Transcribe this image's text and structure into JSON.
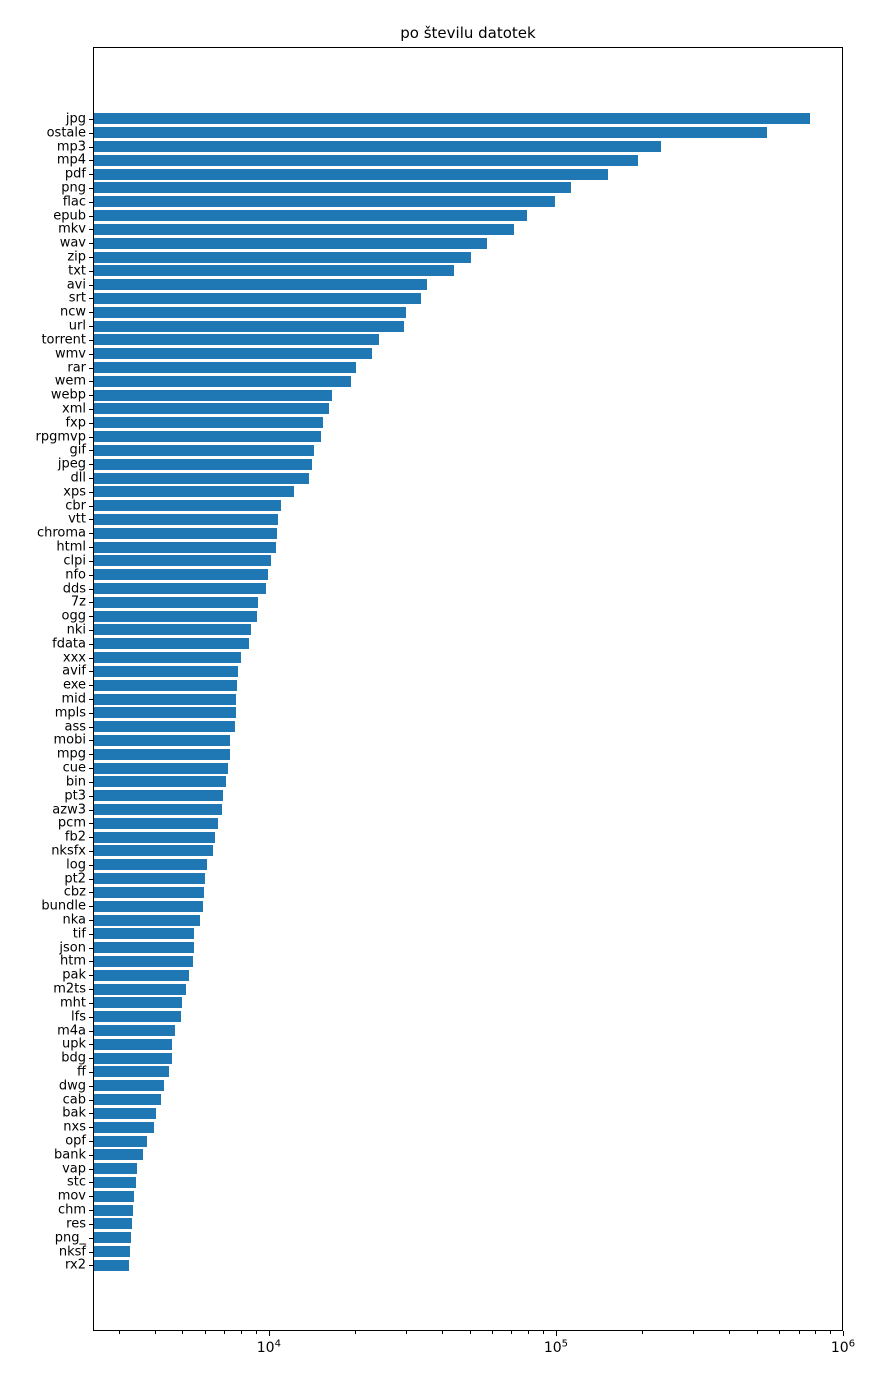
{
  "title": "po številu datotek",
  "chart_data": {
    "type": "bar",
    "orientation": "horizontal",
    "title": "po številu datotek",
    "xlabel": "",
    "ylabel": "",
    "xscale": "log",
    "xlim": [
      2440,
      1000000
    ],
    "grid": false,
    "legend": false,
    "bar_color": "#1f77b4",
    "x_major_ticks": [
      {
        "value": 10000,
        "base": "10",
        "exponent": "4"
      },
      {
        "value": 100000,
        "base": "10",
        "exponent": "5"
      },
      {
        "value": 1000000,
        "base": "10",
        "exponent": "6"
      }
    ],
    "categories": [
      "jpg",
      "ostale",
      "mp3",
      "mp4",
      "pdf",
      "png",
      "flac",
      "epub",
      "mkv",
      "wav",
      "zip",
      "txt",
      "avi",
      "srt",
      "ncw",
      "url",
      "torrent",
      "wmv",
      "rar",
      "wem",
      "webp",
      "xml",
      "fxp",
      "rpgmvp",
      "gif",
      "jpeg",
      "dll",
      "xps",
      "cbr",
      "vtt",
      "chroma",
      "html",
      "clpi",
      "nfo",
      "dds",
      "7z",
      "ogg",
      "nki",
      "fdata",
      "xxx",
      "avif",
      "exe",
      "mid",
      "mpls",
      "ass",
      "mobi",
      "mpg",
      "cue",
      "bin",
      "pt3",
      "azw3",
      "pcm",
      "fb2",
      "nksfx",
      "log",
      "pt2",
      "cbz",
      "bundle",
      "nka",
      "tif",
      "json",
      "htm",
      "pak",
      "m2ts",
      "mht",
      "lfs",
      "m4a",
      "upk",
      "bdg",
      "ff",
      "dwg",
      "cab",
      "bak",
      "nxs",
      "opf",
      "bank",
      "vap",
      "stc",
      "mov",
      "chm",
      "res",
      "png_",
      "nksf",
      "rx2"
    ],
    "values": [
      767000,
      543000,
      232000,
      193000,
      152000,
      113000,
      99000,
      79300,
      71400,
      57500,
      50600,
      44100,
      35500,
      33900,
      30000,
      29500,
      24200,
      22900,
      20100,
      19300,
      16600,
      16200,
      15500,
      15200,
      14350,
      14100,
      13800,
      12200,
      11000,
      10800,
      10700,
      10600,
      10200,
      9900,
      9800,
      9200,
      9100,
      8700,
      8500,
      8000,
      7800,
      7750,
      7700,
      7650,
      7600,
      7350,
      7300,
      7200,
      7100,
      6900,
      6850,
      6650,
      6500,
      6400,
      6100,
      6000,
      5950,
      5880,
      5750,
      5500,
      5470,
      5430,
      5250,
      5150,
      5000,
      4950,
      4700,
      4600,
      4580,
      4500,
      4300,
      4200,
      4050,
      3980,
      3760,
      3640,
      3480,
      3440,
      3390,
      3360,
      3330,
      3300,
      3280,
      3260
    ]
  }
}
